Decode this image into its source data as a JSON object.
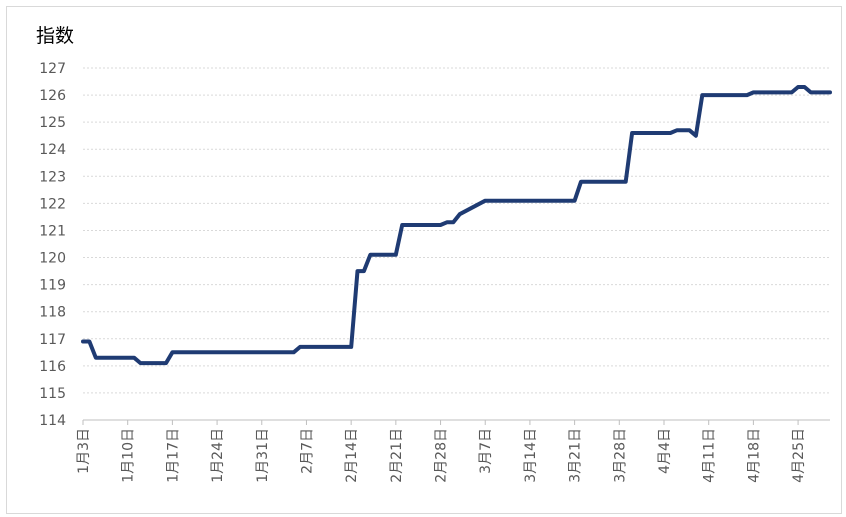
{
  "chart_data": {
    "type": "line",
    "title": "指数",
    "xlabel": "",
    "ylabel": "",
    "ylim": [
      114,
      127
    ],
    "yticks": [
      114,
      115,
      116,
      117,
      118,
      119,
      120,
      121,
      122,
      123,
      124,
      125,
      126,
      127
    ],
    "grid": true,
    "x_tick_labels": [
      "1月3日",
      "1月10日",
      "1月17日",
      "1月24日",
      "1月31日",
      "2月7日",
      "2月14日",
      "2月21日",
      "2月28日",
      "3月7日",
      "3月14日",
      "3月21日",
      "3月28日",
      "4月4日",
      "4月11日",
      "4月18日",
      "4月25日"
    ],
    "x_start": "1月3日",
    "x_end": "4月30日",
    "series": [
      {
        "color": "#1f3b73",
        "points": [
          [
            "1月3日",
            116.9
          ],
          [
            "1月4日",
            116.9
          ],
          [
            "1月5日",
            116.3
          ],
          [
            "1月6日",
            116.3
          ],
          [
            "1月7日",
            116.3
          ],
          [
            "1月10日",
            116.3
          ],
          [
            "1月11日",
            116.3
          ],
          [
            "1月12日",
            116.1
          ],
          [
            "1月13日",
            116.1
          ],
          [
            "1月14日",
            116.1
          ],
          [
            "1月15日",
            116.1
          ],
          [
            "1月16日",
            116.1
          ],
          [
            "1月17日",
            116.5
          ],
          [
            "1月18日",
            116.5
          ],
          [
            "1月21日",
            116.5
          ],
          [
            "1月24日",
            116.5
          ],
          [
            "1月28日",
            116.5
          ],
          [
            "1月31日",
            116.5
          ],
          [
            "2月3日",
            116.5
          ],
          [
            "2月5日",
            116.5
          ],
          [
            "2月6日",
            116.7
          ],
          [
            "2月7日",
            116.7
          ],
          [
            "2月10日",
            116.7
          ],
          [
            "2月13日",
            116.7
          ],
          [
            "2月14日",
            116.7
          ],
          [
            "2月15日",
            119.5
          ],
          [
            "2月16日",
            119.5
          ],
          [
            "2月17日",
            120.1
          ],
          [
            "2月20日",
            120.1
          ],
          [
            "2月21日",
            120.1
          ],
          [
            "2月22日",
            121.2
          ],
          [
            "2月25日",
            121.2
          ],
          [
            "2月28日",
            121.2
          ],
          [
            "3月1日",
            121.3
          ],
          [
            "3月2日",
            121.3
          ],
          [
            "3月3日",
            121.6
          ],
          [
            "3月7日",
            122.1
          ],
          [
            "3月10日",
            122.1
          ],
          [
            "3月14日",
            122.1
          ],
          [
            "3月17日",
            122.1
          ],
          [
            "3月21日",
            122.1
          ],
          [
            "3月22日",
            122.8
          ],
          [
            "3月25日",
            122.8
          ],
          [
            "3月28日",
            122.8
          ],
          [
            "3月29日",
            122.8
          ],
          [
            "3月30日",
            124.6
          ],
          [
            "4月1日",
            124.6
          ],
          [
            "4月4日",
            124.6
          ],
          [
            "4月5日",
            124.6
          ],
          [
            "4月6日",
            124.7
          ],
          [
            "4月7日",
            124.7
          ],
          [
            "4月8日",
            124.7
          ],
          [
            "4月9日",
            124.5
          ],
          [
            "4月10日",
            126.0
          ],
          [
            "4月11日",
            126.0
          ],
          [
            "4月14日",
            126.0
          ],
          [
            "4月17日",
            126.0
          ],
          [
            "4月18日",
            126.1
          ],
          [
            "4月21日",
            126.1
          ],
          [
            "4月24日",
            126.1
          ],
          [
            "4月25日",
            126.3
          ],
          [
            "4月26日",
            126.3
          ],
          [
            "4月27日",
            126.1
          ],
          [
            "4月30日",
            126.1
          ]
        ]
      }
    ]
  }
}
